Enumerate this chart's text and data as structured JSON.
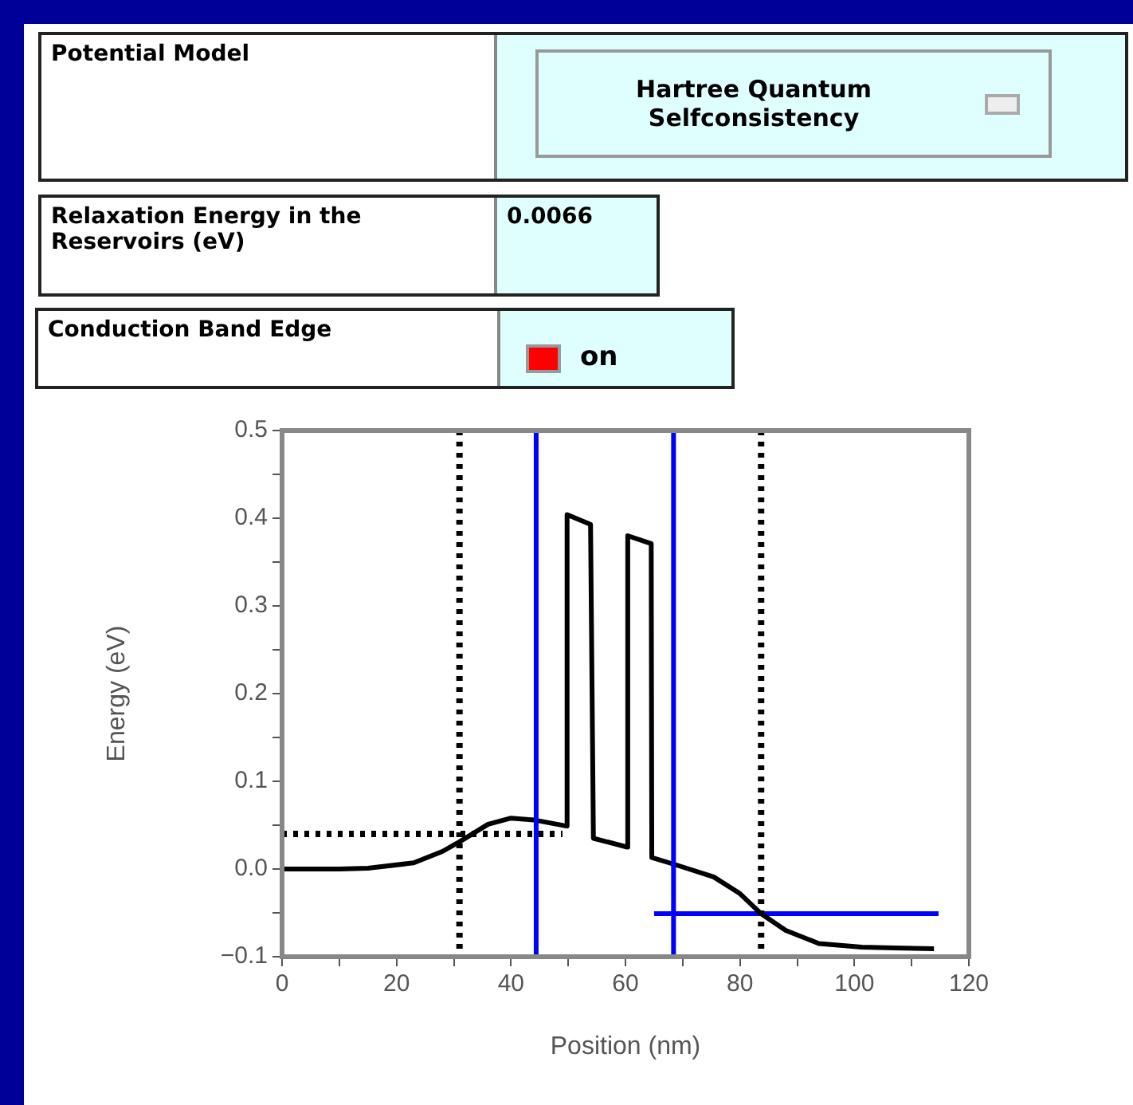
{
  "chart_data": {
    "type": "line",
    "xlabel": "Position (nm)",
    "ylabel": "Energy (eV)",
    "xlim": [
      0,
      120
    ],
    "ylim": [
      -0.1,
      0.5
    ],
    "xticks": [
      0,
      {
        "value": 10,
        "label": null
      },
      20,
      {
        "value": 30,
        "label": null
      },
      40,
      {
        "value": 50,
        "label": null
      },
      60,
      {
        "value": 70,
        "label": null
      },
      80,
      {
        "value": 90,
        "label": null
      },
      100,
      {
        "value": 110,
        "label": null
      },
      120
    ],
    "yticks": [
      {
        "value": -0.1,
        "label": "−0.1"
      },
      {
        "value": -0.05,
        "label": null
      },
      {
        "value": 0,
        "label": "0.0"
      },
      {
        "value": 0.05,
        "label": null
      },
      0.1,
      {
        "value": 0.15,
        "label": null
      },
      0.2,
      {
        "value": 0.25,
        "label": null
      },
      0.3,
      {
        "value": 0.35,
        "label": null
      },
      0.4,
      {
        "value": 0.45,
        "label": null
      },
      0.5
    ],
    "grid": false,
    "legend": false,
    "marker": "none",
    "series": [
      {
        "type": "line",
        "color": "#000000",
        "line_style": "solid",
        "x": [
          0,
          10,
          15,
          23,
          28,
          31,
          36,
          40,
          44,
          49.7,
          49.8,
          53.9,
          54.4,
          60.3,
          60.4,
          64.5,
          64.6,
          68.7,
          75.4,
          80,
          83.7,
          88,
          93.8,
          101.3,
          107,
          113.9
        ],
        "values": [
          0,
          0,
          0.001,
          0.007,
          0.02,
          0.031,
          0.051,
          0.058,
          0.056,
          0.049,
          0.404,
          0.393,
          0.035,
          0.025,
          0.38,
          0.371,
          0.013,
          0.005,
          -0.009,
          -0.028,
          -0.051,
          -0.07,
          -0.085,
          -0.089,
          -0.09,
          -0.091
        ]
      },
      {
        "type": "line",
        "color": "#000000",
        "line_style": "dotted",
        "x": [
          0,
          49
        ],
        "values": [
          0.04,
          0.04
        ]
      },
      {
        "type": "line",
        "color": "#0000ff",
        "line_style": "solid",
        "x": [
          65,
          114.7
        ],
        "values": [
          -0.051,
          -0.051
        ]
      }
    ],
    "ref_lines": [
      {
        "axis": "x",
        "value": 31,
        "color": "#000000",
        "line_style": "dotted"
      },
      {
        "axis": "x",
        "value": 83.7,
        "color": "#000000",
        "line_style": "dotted"
      },
      {
        "axis": "x",
        "value": 44.4,
        "color": "#0000ff",
        "line_style": "solid"
      },
      {
        "axis": "x",
        "value": 68.4,
        "color": "#0000ff",
        "line_style": "solid"
      }
    ],
    "annotations": [
      "Potential Model",
      "Hartree Quantum Selfconsistency",
      "Relaxation Energy in the Reservoirs (eV)",
      "0.0066",
      "Conduction Band Edge",
      "on"
    ]
  }
}
